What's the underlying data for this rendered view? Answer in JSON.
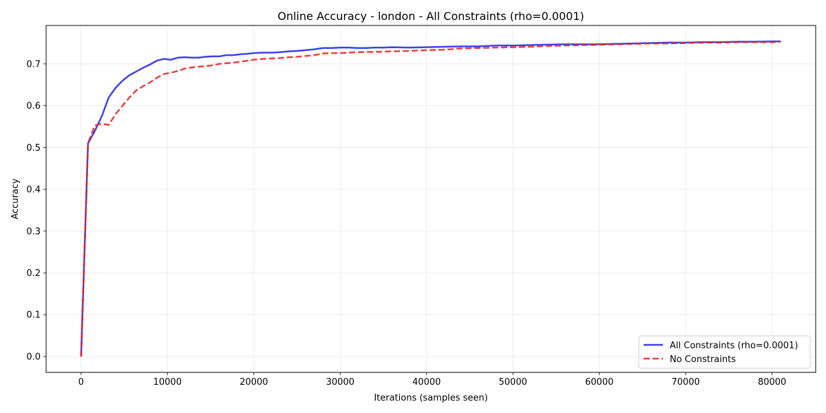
{
  "chart_data": {
    "type": "line",
    "title": "Online Accuracy - london - All Constraints (rho=0.0001)",
    "xlabel": "Iterations (samples seen)",
    "ylabel": "Accuracy",
    "xlim": [
      -4050,
      85050
    ],
    "ylim": [
      -0.038,
      0.792
    ],
    "xticks": [
      0,
      10000,
      20000,
      30000,
      40000,
      50000,
      60000,
      70000,
      80000
    ],
    "yticks": [
      0.0,
      0.1,
      0.2,
      0.3,
      0.4,
      0.5,
      0.6,
      0.7
    ],
    "xtick_labels": [
      "0",
      "10000",
      "20000",
      "30000",
      "40000",
      "50000",
      "60000",
      "70000",
      "80000"
    ],
    "ytick_labels": [
      "0.0",
      "0.1",
      "0.2",
      "0.3",
      "0.4",
      "0.5",
      "0.6",
      "0.7"
    ],
    "grid": true,
    "legend_position": "bottom-right",
    "series": [
      {
        "name": "All Constraints (rho=0.0001)",
        "color": "#1f1fe6",
        "style": "solid",
        "x": [
          0,
          800,
          1600,
          2400,
          3200,
          4000,
          4800,
          5600,
          6400,
          7200,
          8000,
          8800,
          9600,
          10400,
          11200,
          12000,
          12800,
          13600,
          14400,
          15200,
          16000,
          16800,
          17600,
          18400,
          19200,
          20000,
          21000,
          22000,
          23000,
          24000,
          25000,
          26000,
          27000,
          28000,
          29000,
          30000,
          31000,
          32000,
          33000,
          34000,
          35000,
          36000,
          38000,
          40000,
          42000,
          44000,
          46000,
          48000,
          50000,
          52000,
          54000,
          56000,
          58000,
          60000,
          62000,
          64000,
          66000,
          68000,
          70000,
          72000,
          74000,
          76000,
          78000,
          80000,
          81000
        ],
        "y": [
          0.0,
          0.51,
          0.54,
          0.575,
          0.62,
          0.643,
          0.66,
          0.673,
          0.682,
          0.691,
          0.699,
          0.708,
          0.712,
          0.71,
          0.715,
          0.716,
          0.715,
          0.715,
          0.717,
          0.718,
          0.718,
          0.721,
          0.721,
          0.723,
          0.724,
          0.726,
          0.727,
          0.727,
          0.728,
          0.73,
          0.731,
          0.733,
          0.735,
          0.738,
          0.738,
          0.739,
          0.739,
          0.738,
          0.738,
          0.739,
          0.739,
          0.74,
          0.739,
          0.74,
          0.741,
          0.742,
          0.742,
          0.744,
          0.744,
          0.745,
          0.746,
          0.747,
          0.747,
          0.747,
          0.748,
          0.749,
          0.75,
          0.751,
          0.751,
          0.752,
          0.752,
          0.753,
          0.753,
          0.754,
          0.754
        ]
      },
      {
        "name": "No Constraints",
        "color": "#e61f1f",
        "style": "dashed",
        "x": [
          0,
          800,
          1600,
          2400,
          3200,
          4000,
          4800,
          5600,
          6400,
          7200,
          8000,
          8800,
          9600,
          10400,
          11200,
          12000,
          13000,
          14000,
          15000,
          16000,
          17000,
          18000,
          19000,
          20000,
          21000,
          22000,
          23000,
          24000,
          25000,
          26000,
          27000,
          28000,
          29000,
          30000,
          32000,
          34000,
          36000,
          38000,
          40000,
          42000,
          44000,
          46000,
          48000,
          50000,
          52000,
          54000,
          56000,
          58000,
          60000,
          62000,
          64000,
          66000,
          68000,
          70000,
          72000,
          74000,
          76000,
          78000,
          80000,
          81000
        ],
        "y": [
          0.0,
          0.51,
          0.553,
          0.557,
          0.554,
          0.58,
          0.6,
          0.62,
          0.637,
          0.647,
          0.656,
          0.667,
          0.676,
          0.679,
          0.683,
          0.689,
          0.692,
          0.694,
          0.696,
          0.7,
          0.702,
          0.704,
          0.707,
          0.71,
          0.712,
          0.713,
          0.714,
          0.716,
          0.717,
          0.719,
          0.721,
          0.725,
          0.726,
          0.726,
          0.728,
          0.729,
          0.73,
          0.731,
          0.733,
          0.734,
          0.737,
          0.738,
          0.739,
          0.74,
          0.741,
          0.743,
          0.744,
          0.745,
          0.746,
          0.747,
          0.748,
          0.749,
          0.749,
          0.75,
          0.751,
          0.751,
          0.752,
          0.752,
          0.752,
          0.753
        ]
      }
    ]
  }
}
